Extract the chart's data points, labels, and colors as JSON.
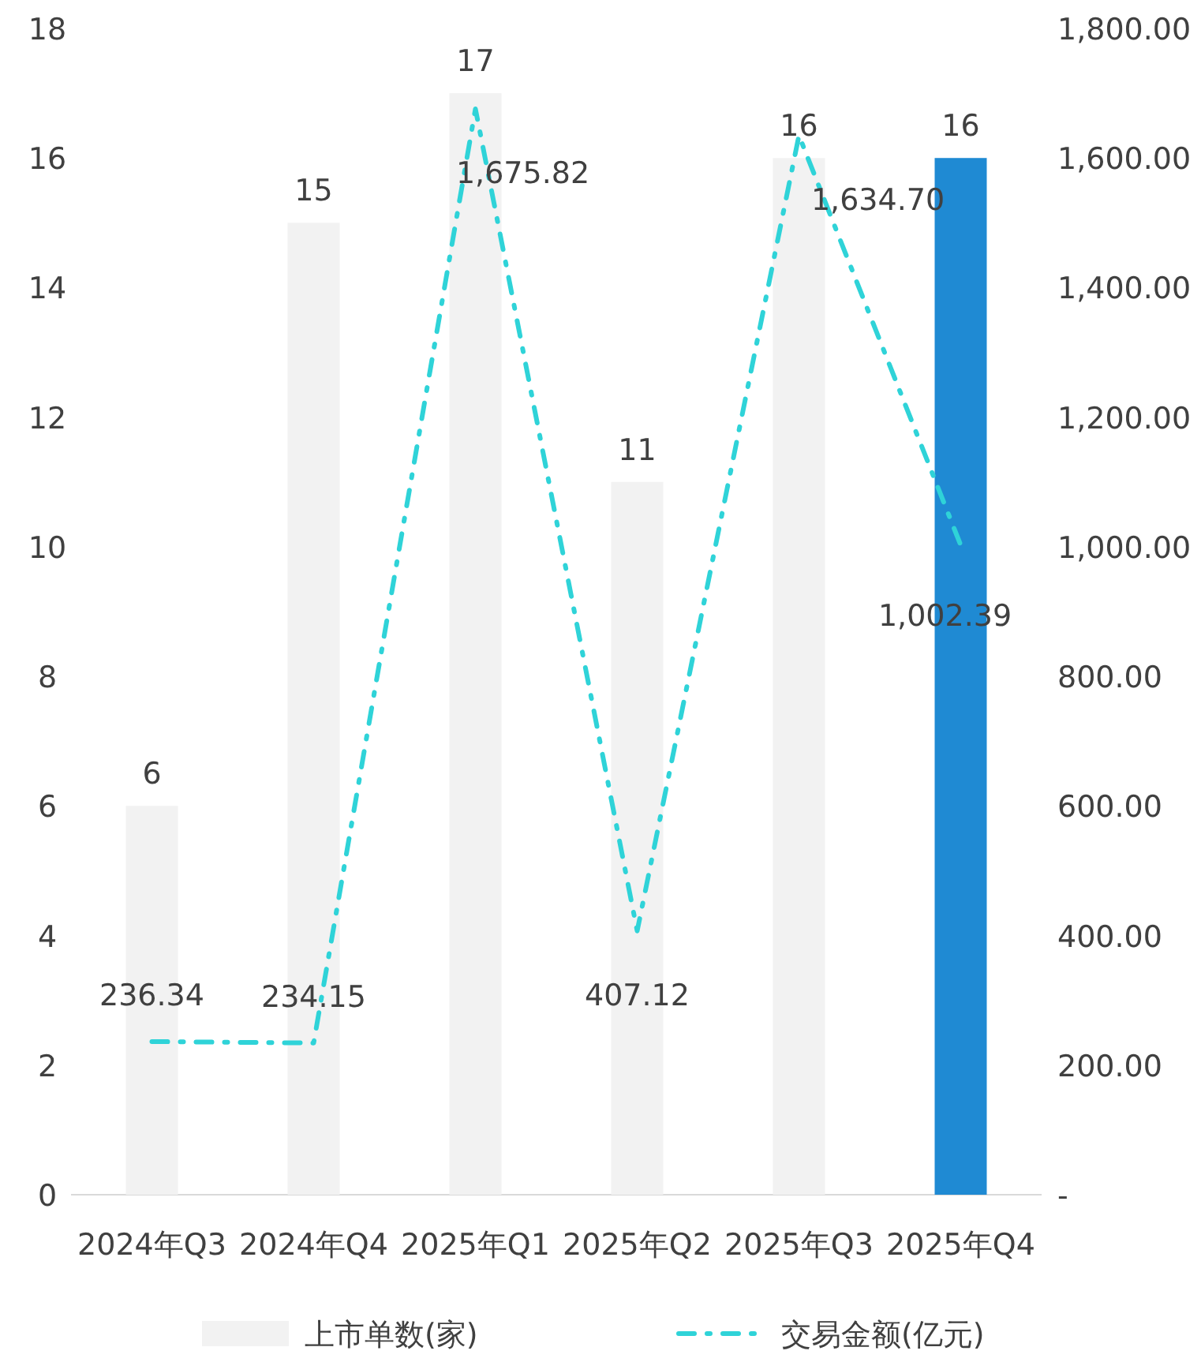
{
  "chart_data": {
    "type": "bar",
    "categories": [
      "2024年Q3",
      "2024年Q4",
      "2025年Q1",
      "2025年Q2",
      "2025年Q3",
      "2025年Q4"
    ],
    "series": [
      {
        "name": "上市单数(家)",
        "colors": [
          "#f2f2f2",
          "#f2f2f2",
          "#f2f2f2",
          "#f2f2f2",
          "#f2f2f2",
          "#1f8ad3"
        ],
        "values": [
          6,
          15,
          17,
          11,
          16,
          16
        ],
        "value_labels": [
          "6",
          "15",
          "17",
          "11",
          "16",
          "16"
        ]
      },
      {
        "name": "交易金额(亿元)",
        "type": "line",
        "axis": "y2",
        "color": "#2fd3d8",
        "line_style": "dashed",
        "values": [
          236.34,
          234.15,
          1675.82,
          407.12,
          1634.7,
          1002.39
        ],
        "value_labels": [
          "236.34",
          "234.15",
          "1,675.82",
          "407.12",
          "1,634.70",
          "1,002.39"
        ]
      }
    ],
    "ylim": [
      0,
      18
    ],
    "yticks": [
      0,
      2,
      4,
      6,
      8,
      10,
      12,
      14,
      16,
      18
    ],
    "y2lim": [
      0,
      1800
    ],
    "y2ticks": [
      {
        "value": 0,
        "label": "-"
      },
      {
        "value": 200,
        "label": "200.00"
      },
      {
        "value": 400,
        "label": "400.00"
      },
      {
        "value": 600,
        "label": "600.00"
      },
      {
        "value": 800,
        "label": "800.00"
      },
      {
        "value": 1000,
        "label": "1,000.00"
      },
      {
        "value": 1200,
        "label": "1,200.00"
      },
      {
        "value": 1400,
        "label": "1,400.00"
      },
      {
        "value": 1600,
        "label": "1,600.00"
      },
      {
        "value": 1800,
        "label": "1,800.00"
      }
    ],
    "legend": "bottom"
  }
}
